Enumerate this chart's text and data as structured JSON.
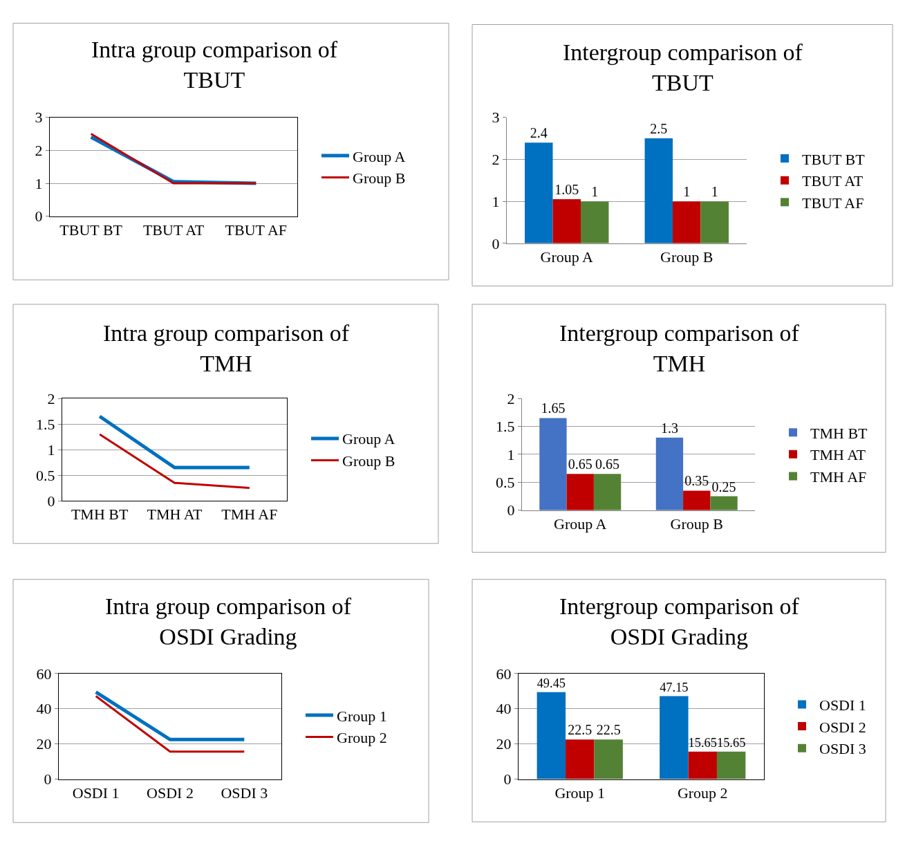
{
  "chart_data": [
    {
      "type": "line",
      "title": "Intra group comparison of\nTBUT",
      "categories": [
        "TBUT BT",
        "TBUT AT",
        "TBUT AF"
      ],
      "series": [
        {
          "name": "Group A",
          "color": "#0070c0",
          "values": [
            2.4,
            1.05,
            1
          ]
        },
        {
          "name": "Group B",
          "color": "#c00000",
          "values": [
            2.5,
            1,
            1
          ]
        }
      ],
      "ylim": [
        0,
        3
      ],
      "yticks": [
        0,
        1,
        2,
        3
      ],
      "grid": "y",
      "legend": "right",
      "marker": "none",
      "line_style": "solid"
    },
    {
      "type": "bar",
      "title": "Intergroup comparison of\nTBUT",
      "categories": [
        "Group A",
        "Group B"
      ],
      "series": [
        {
          "name": "TBUT BT",
          "color": "#0070c0",
          "values": [
            2.4,
            2.5
          ]
        },
        {
          "name": "TBUT AT",
          "color": "#c00000",
          "values": [
            1.05,
            1
          ]
        },
        {
          "name": "TBUT AF",
          "color": "#548235",
          "values": [
            1,
            1
          ]
        }
      ],
      "ylim": [
        0,
        3
      ],
      "yticks": [
        0,
        1,
        2,
        3
      ],
      "grid": "y",
      "legend": "right",
      "data_labels": true
    },
    {
      "type": "line",
      "title": "Intra group comparison of\nTMH",
      "categories": [
        "TMH BT",
        "TMH AT",
        "TMH AF"
      ],
      "series": [
        {
          "name": "Group A",
          "color": "#0070c0",
          "values": [
            1.65,
            0.65,
            0.65
          ]
        },
        {
          "name": "Group B",
          "color": "#c00000",
          "values": [
            1.3,
            0.35,
            0.25
          ]
        }
      ],
      "ylim": [
        0,
        2
      ],
      "yticks": [
        0,
        0.5,
        1,
        1.5,
        2
      ],
      "grid": "y",
      "legend": "right",
      "marker": "none",
      "line_style": "solid"
    },
    {
      "type": "bar",
      "title": "Intergroup comparison of\nTMH",
      "categories": [
        "Group A",
        "Group B"
      ],
      "series": [
        {
          "name": "TMH BT",
          "color": "#4472c4",
          "values": [
            1.65,
            1.3
          ]
        },
        {
          "name": "TMH AT",
          "color": "#c00000",
          "values": [
            0.65,
            0.35
          ]
        },
        {
          "name": "TMH AF",
          "color": "#548235",
          "values": [
            0.65,
            0.25
          ]
        }
      ],
      "ylim": [
        0,
        2
      ],
      "yticks": [
        0,
        0.5,
        1,
        1.5,
        2
      ],
      "grid": "y",
      "legend": "right",
      "data_labels": true
    },
    {
      "type": "line",
      "title": "Intra group comparison of\nOSDI Grading",
      "categories": [
        "OSDI 1",
        "OSDI 2",
        "OSDI 3"
      ],
      "series": [
        {
          "name": "Group 1",
          "color": "#0070c0",
          "values": [
            49.45,
            22.5,
            22.5
          ]
        },
        {
          "name": "Group 2",
          "color": "#c00000",
          "values": [
            47.15,
            15.65,
            15.65
          ]
        }
      ],
      "ylim": [
        0,
        60
      ],
      "yticks": [
        0,
        20,
        40,
        60
      ],
      "grid": "y",
      "legend": "right",
      "marker": "none",
      "line_style": "solid"
    },
    {
      "type": "bar",
      "title": "Intergroup comparison of\nOSDI Grading",
      "categories": [
        "Group 1",
        "Group 2"
      ],
      "series": [
        {
          "name": "OSDI 1",
          "color": "#0070c0",
          "values": [
            49.45,
            47.15
          ]
        },
        {
          "name": "OSDI 2",
          "color": "#c00000",
          "values": [
            22.5,
            15.65
          ]
        },
        {
          "name": "OSDI 3",
          "color": "#548235",
          "values": [
            22.5,
            15.65
          ]
        }
      ],
      "ylim": [
        0,
        60
      ],
      "yticks": [
        0,
        20,
        40,
        60
      ],
      "grid": "y",
      "legend": "right",
      "data_labels": true
    }
  ]
}
